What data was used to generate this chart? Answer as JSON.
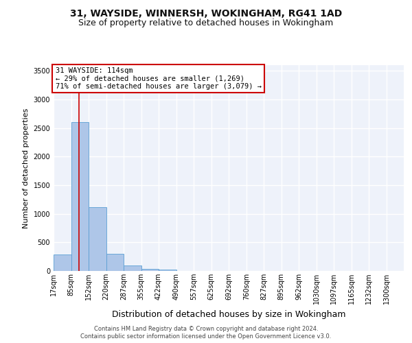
{
  "title1": "31, WAYSIDE, WINNERSH, WOKINGHAM, RG41 1AD",
  "title2": "Size of property relative to detached houses in Wokingham",
  "xlabel": "Distribution of detached houses by size in Wokingham",
  "ylabel": "Number of detached properties",
  "footer1": "Contains HM Land Registry data © Crown copyright and database right 2024.",
  "footer2": "Contains public sector information licensed under the Open Government Licence v3.0.",
  "annotation_line1": "31 WAYSIDE: 114sqm",
  "annotation_line2": "← 29% of detached houses are smaller (1,269)",
  "annotation_line3": "71% of semi-detached houses are larger (3,079) →",
  "property_size": 114,
  "bar_edges": [
    17,
    85,
    152,
    220,
    287,
    355,
    422,
    490,
    557,
    625,
    692,
    760,
    827,
    895,
    962,
    1030,
    1097,
    1165,
    1232,
    1300,
    1367
  ],
  "bar_values": [
    290,
    2600,
    1120,
    300,
    100,
    40,
    20,
    0,
    0,
    0,
    0,
    0,
    0,
    0,
    0,
    0,
    0,
    0,
    0,
    0
  ],
  "bar_color": "#aec6e8",
  "bar_edgecolor": "#5a9fd4",
  "vline_color": "#cc0000",
  "ylim": [
    0,
    3600
  ],
  "yticks": [
    0,
    500,
    1000,
    1500,
    2000,
    2500,
    3000,
    3500
  ],
  "background_color": "#eef2fa",
  "grid_color": "#ffffff",
  "annotation_box_edgecolor": "#cc0000",
  "annotation_box_facecolor": "#ffffff",
  "title1_fontsize": 10,
  "title2_fontsize": 9,
  "ylabel_fontsize": 8,
  "xlabel_fontsize": 9,
  "tick_fontsize": 7
}
